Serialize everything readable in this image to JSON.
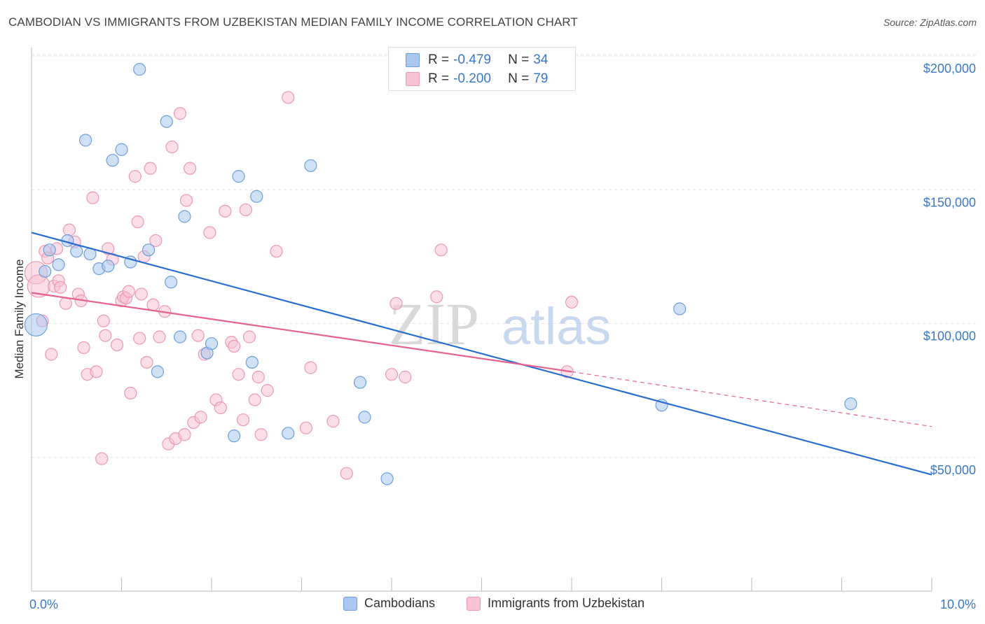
{
  "title": "CAMBODIAN VS IMMIGRANTS FROM UZBEKISTAN MEDIAN FAMILY INCOME CORRELATION CHART",
  "source": "Source: ZipAtlas.com",
  "watermark": {
    "zip": "ZIP",
    "atlas": "atlas"
  },
  "colors": {
    "blue_fill": "#aac8ef",
    "blue_stroke": "#6d9fdc",
    "blue_line": "#2a6fcf",
    "pink_fill": "#f8c3d3",
    "pink_stroke": "#ec98b3",
    "pink_line": "#e5628f",
    "tick_text": "#3a78c9",
    "grid": "#e3e3e3"
  },
  "legend_top": {
    "rows": [
      {
        "key": "R =",
        "r": "-0.479",
        "n_key": "N =",
        "n": "34",
        "series": "blue"
      },
      {
        "key": "R =",
        "r": "-0.200",
        "n_key": "N =",
        "n": "79",
        "series": "pink"
      }
    ]
  },
  "legend_bottom": {
    "items": [
      "Cambodians",
      "Immigrants from Uzbekistan"
    ]
  },
  "chart_data": {
    "type": "scatter",
    "title": "CAMBODIAN VS IMMIGRANTS FROM UZBEKISTAN MEDIAN FAMILY INCOME CORRELATION CHART",
    "xlabel": "",
    "ylabel": "Median Family Income",
    "xlim": [
      0,
      10
    ],
    "ylim": [
      0,
      205000
    ],
    "x_unit": "%",
    "x_tick_labels": [
      "0.0%",
      "10.0%"
    ],
    "y_ticks": [
      50000,
      100000,
      150000,
      200000
    ],
    "y_tick_labels": [
      "$50,000",
      "$100,000",
      "$150,000",
      "$200,000"
    ],
    "grid": "horizontal dashed",
    "legend": "top-center and bottom",
    "series": [
      {
        "name": "Cambodians",
        "color": "blue",
        "r": -0.479,
        "n": 34,
        "trend": {
          "x": [
            0,
            10
          ],
          "y": [
            134000,
            43500
          ]
        },
        "points": [
          [
            0.05,
            99500
          ],
          [
            0.15,
            119500
          ],
          [
            0.2,
            127500
          ],
          [
            0.3,
            122000
          ],
          [
            0.4,
            131000
          ],
          [
            0.5,
            127000
          ],
          [
            0.6,
            168500
          ],
          [
            0.65,
            126000
          ],
          [
            0.75,
            120500
          ],
          [
            0.85,
            121500
          ],
          [
            0.9,
            161000
          ],
          [
            1.0,
            165000
          ],
          [
            1.1,
            123000
          ],
          [
            1.2,
            195000
          ],
          [
            1.3,
            127500
          ],
          [
            1.4,
            82000
          ],
          [
            1.5,
            175500
          ],
          [
            1.55,
            115500
          ],
          [
            1.65,
            95000
          ],
          [
            1.7,
            140000
          ],
          [
            1.95,
            89000
          ],
          [
            2.0,
            92500
          ],
          [
            2.25,
            58000
          ],
          [
            2.3,
            155000
          ],
          [
            2.45,
            85500
          ],
          [
            2.5,
            147500
          ],
          [
            2.85,
            59000
          ],
          [
            3.1,
            159000
          ],
          [
            3.65,
            78000
          ],
          [
            3.7,
            65000
          ],
          [
            3.95,
            42000
          ],
          [
            7.0,
            69500
          ],
          [
            7.2,
            105500
          ],
          [
            9.1,
            70000
          ]
        ]
      },
      {
        "name": "Immigrants from Uzbekistan",
        "color": "pink",
        "r": -0.2,
        "n": 79,
        "trend": {
          "x": [
            0,
            6.0
          ],
          "y": [
            111500,
            82000
          ]
        },
        "trend_dashed": {
          "x": [
            6.0,
            10
          ],
          "y": [
            82000,
            61500
          ]
        },
        "points": [
          [
            0.05,
            119000
          ],
          [
            0.08,
            114000
          ],
          [
            0.12,
            101000
          ],
          [
            0.15,
            127000
          ],
          [
            0.18,
            124500
          ],
          [
            0.22,
            88500
          ],
          [
            0.25,
            114000
          ],
          [
            0.28,
            128000
          ],
          [
            0.3,
            116000
          ],
          [
            0.32,
            113500
          ],
          [
            0.38,
            107500
          ],
          [
            0.42,
            135000
          ],
          [
            0.48,
            130500
          ],
          [
            0.52,
            111000
          ],
          [
            0.55,
            108500
          ],
          [
            0.58,
            91000
          ],
          [
            0.62,
            81000
          ],
          [
            0.68,
            147000
          ],
          [
            0.72,
            82000
          ],
          [
            0.78,
            49500
          ],
          [
            0.8,
            101000
          ],
          [
            0.82,
            95500
          ],
          [
            0.85,
            128000
          ],
          [
            0.9,
            124000
          ],
          [
            0.95,
            92000
          ],
          [
            1.0,
            108500
          ],
          [
            1.02,
            110000
          ],
          [
            1.05,
            109500
          ],
          [
            1.08,
            112000
          ],
          [
            1.1,
            74000
          ],
          [
            1.15,
            155000
          ],
          [
            1.18,
            138000
          ],
          [
            1.2,
            94500
          ],
          [
            1.22,
            111000
          ],
          [
            1.25,
            125000
          ],
          [
            1.28,
            85500
          ],
          [
            1.32,
            158000
          ],
          [
            1.35,
            107000
          ],
          [
            1.38,
            131000
          ],
          [
            1.42,
            95000
          ],
          [
            1.48,
            104500
          ],
          [
            1.52,
            55000
          ],
          [
            1.56,
            166000
          ],
          [
            1.6,
            57000
          ],
          [
            1.65,
            178500
          ],
          [
            1.7,
            58500
          ],
          [
            1.72,
            146000
          ],
          [
            1.76,
            158000
          ],
          [
            1.8,
            63000
          ],
          [
            1.85,
            95500
          ],
          [
            1.88,
            65000
          ],
          [
            1.92,
            88500
          ],
          [
            1.98,
            134000
          ],
          [
            2.05,
            71500
          ],
          [
            2.1,
            68500
          ],
          [
            2.15,
            142000
          ],
          [
            2.22,
            93000
          ],
          [
            2.25,
            91500
          ],
          [
            2.3,
            81000
          ],
          [
            2.35,
            64000
          ],
          [
            2.38,
            142500
          ],
          [
            2.42,
            95000
          ],
          [
            2.48,
            71500
          ],
          [
            2.52,
            80000
          ],
          [
            2.55,
            58500
          ],
          [
            2.62,
            75000
          ],
          [
            2.72,
            127000
          ],
          [
            2.85,
            184500
          ],
          [
            3.05,
            61000
          ],
          [
            3.1,
            83500
          ],
          [
            3.35,
            63500
          ],
          [
            3.5,
            44000
          ],
          [
            4.0,
            81000
          ],
          [
            4.05,
            107500
          ],
          [
            4.15,
            80000
          ],
          [
            4.5,
            110000
          ],
          [
            4.55,
            127500
          ],
          [
            6.0,
            108000
          ],
          [
            5.95,
            82000
          ]
        ]
      }
    ]
  }
}
